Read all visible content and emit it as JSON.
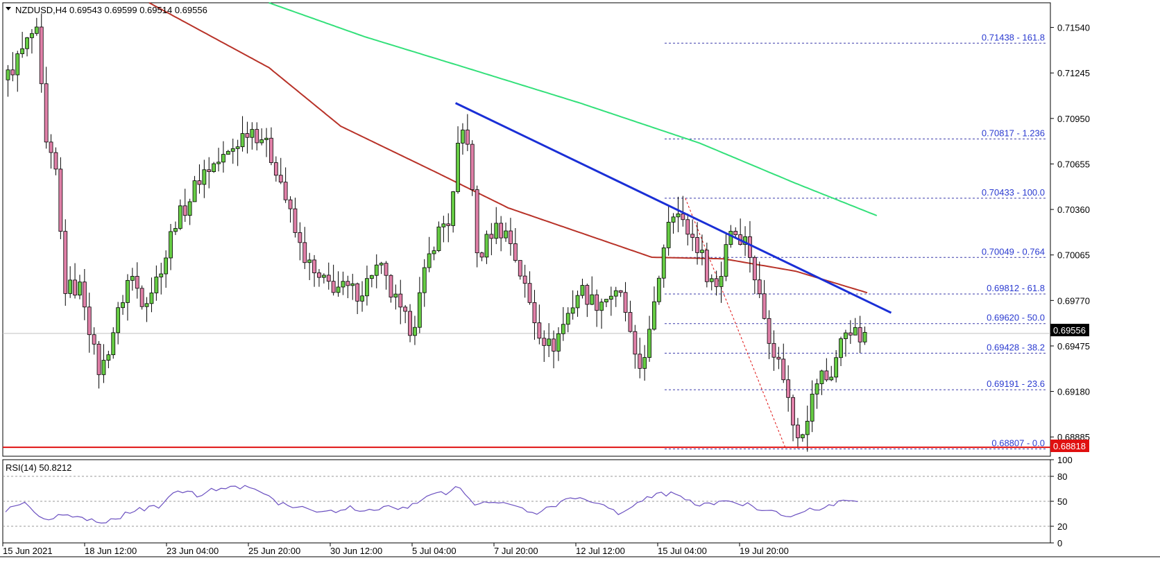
{
  "window": {
    "symbol_header": "NZDUSD,H4  0.69543 0.69599 0.69514 0.69556",
    "current_price": "0.69556",
    "support_price": "0.68818",
    "rsi_label": "RSI(14) 50.8212"
  },
  "colors": {
    "background": "#ffffff",
    "bull_candle": "#66cc44",
    "bear_candle": "#e080a8",
    "candle_wick": "#000000",
    "ma_red": "#b83228",
    "ma_green": "#33e07a",
    "trendline": "#1a2fd6",
    "support_line": "#e01010",
    "fib_text": "#2a3ad0",
    "fib_line": "#3a3aaa",
    "rsi_line": "#6a4fc0",
    "current_price_box": "#000000",
    "support_box": "#e01010"
  },
  "price_axis": {
    "ticks": [
      "0.71540",
      "0.71245",
      "0.70950",
      "0.70655",
      "0.70360",
      "0.70065",
      "0.69770",
      "0.69475",
      "0.69180",
      "0.68885"
    ]
  },
  "rsi_axis": {
    "ticks": [
      "100",
      "80",
      "50",
      "20",
      "0"
    ]
  },
  "time_axis": {
    "labels": [
      "15 Jun 2021",
      "18 Jun 12:00",
      "23 Jun 04:00",
      "25 Jun 20:00",
      "30 Jun 12:00",
      "5 Jul 04:00",
      "7 Jul 20:00",
      "12 Jul 12:00",
      "15 Jul 04:00",
      "19 Jul 20:00"
    ]
  },
  "fib_levels": [
    {
      "label": "0.71438 - 161.8",
      "price": 0.71438
    },
    {
      "label": "0.70817 - 1.236",
      "price": 0.70817
    },
    {
      "label": "0.70433 - 100.0",
      "price": 0.70433
    },
    {
      "label": "0.70049 - 0.764",
      "price": 0.70049
    },
    {
      "label": "0.69812 - 61.8",
      "price": 0.69812
    },
    {
      "label": "0.69620 - 50.0",
      "price": 0.6962
    },
    {
      "label": "0.69428 - 38.2",
      "price": 0.69428
    },
    {
      "label": "0.69191 - 23.6",
      "price": 0.69191
    },
    {
      "label": "0.68807 - 0.0",
      "price": 0.68807
    }
  ],
  "chart_data": {
    "type": "candlestick",
    "symbol": "NZDUSD",
    "timeframe": "H4",
    "ylim": [
      0.6876,
      0.717
    ],
    "current_price": 0.69556,
    "support_level": 0.68818,
    "bar_count": 200,
    "trendline": {
      "start": [
        94,
        0.7105
      ],
      "end": [
        185,
        0.6969
      ]
    },
    "moving_averages": [
      {
        "color": "ma_red",
        "points": [
          [
            30,
            0.717
          ],
          [
            55,
            0.7128
          ],
          [
            70,
            0.709
          ],
          [
            90,
            0.706
          ],
          [
            105,
            0.7037
          ],
          [
            120,
            0.7021
          ],
          [
            135,
            0.7005
          ],
          [
            150,
            0.7004
          ],
          [
            165,
            0.6996
          ],
          [
            180,
            0.6982
          ]
        ]
      },
      {
        "color": "ma_green",
        "points": [
          [
            55,
            0.717
          ],
          [
            75,
            0.7148
          ],
          [
            95,
            0.7129
          ],
          [
            120,
            0.7105
          ],
          [
            145,
            0.7079
          ],
          [
            165,
            0.7053
          ],
          [
            182,
            0.7032
          ]
        ]
      }
    ],
    "price_points": [
      [
        0,
        0.712
      ],
      [
        6,
        0.7152
      ],
      [
        7,
        0.7145
      ],
      [
        8,
        0.708
      ],
      [
        11,
        0.7055
      ],
      [
        12,
        0.6985
      ],
      [
        16,
        0.6985
      ],
      [
        19,
        0.6935
      ],
      [
        20,
        0.693
      ],
      [
        22,
        0.6952
      ],
      [
        26,
        0.6995
      ],
      [
        29,
        0.6975
      ],
      [
        33,
        0.7
      ],
      [
        35,
        0.7025
      ],
      [
        38,
        0.704
      ],
      [
        41,
        0.706
      ],
      [
        46,
        0.707
      ],
      [
        51,
        0.709
      ],
      [
        54,
        0.708
      ],
      [
        57,
        0.706
      ],
      [
        61,
        0.7015
      ],
      [
        65,
        0.699
      ],
      [
        70,
        0.6985
      ],
      [
        74,
        0.6982
      ],
      [
        78,
        0.7
      ],
      [
        82,
        0.697
      ],
      [
        85,
        0.6958
      ],
      [
        88,
        0.7
      ],
      [
        90,
        0.702
      ],
      [
        93,
        0.703
      ],
      [
        95,
        0.7088
      ],
      [
        97,
        0.708
      ],
      [
        98,
        0.701
      ],
      [
        99,
        0.7005
      ],
      [
        102,
        0.7025
      ],
      [
        105,
        0.702
      ],
      [
        108,
        0.699
      ],
      [
        111,
        0.696
      ],
      [
        114,
        0.6945
      ],
      [
        117,
        0.6965
      ],
      [
        120,
        0.6985
      ],
      [
        123,
        0.6975
      ],
      [
        126,
        0.698
      ],
      [
        129,
        0.6978
      ],
      [
        132,
        0.6928
      ],
      [
        135,
        0.696
      ],
      [
        137,
        0.7005
      ],
      [
        139,
        0.704
      ],
      [
        141,
        0.7028
      ],
      [
        143,
        0.702
      ],
      [
        145,
        0.701
      ],
      [
        147,
        0.699
      ],
      [
        149,
        0.6985
      ],
      [
        151,
        0.7025
      ],
      [
        153,
        0.702
      ],
      [
        155,
        0.7015
      ],
      [
        157,
        0.6985
      ],
      [
        159,
        0.696
      ],
      [
        161,
        0.694
      ],
      [
        163,
        0.6925
      ],
      [
        164,
        0.69
      ],
      [
        166,
        0.689
      ],
      [
        168,
        0.6908
      ],
      [
        170,
        0.693
      ],
      [
        172,
        0.6925
      ],
      [
        174,
        0.6945
      ],
      [
        176,
        0.6962
      ],
      [
        178,
        0.6952
      ]
    ],
    "rsi": {
      "label": "RSI(14)",
      "value": 50.8212,
      "ylim": [
        0,
        100
      ],
      "levels": [
        20,
        50,
        80
      ],
      "points": [
        [
          0,
          40
        ],
        [
          4,
          48
        ],
        [
          8,
          26
        ],
        [
          12,
          35
        ],
        [
          16,
          28
        ],
        [
          20,
          24
        ],
        [
          24,
          32
        ],
        [
          28,
          40
        ],
        [
          32,
          43
        ],
        [
          36,
          62
        ],
        [
          40,
          58
        ],
        [
          44,
          65
        ],
        [
          48,
          68
        ],
        [
          52,
          65
        ],
        [
          56,
          50
        ],
        [
          60,
          42
        ],
        [
          64,
          40
        ],
        [
          68,
          38
        ],
        [
          72,
          42
        ],
        [
          76,
          38
        ],
        [
          80,
          45
        ],
        [
          84,
          40
        ],
        [
          88,
          58
        ],
        [
          92,
          60
        ],
        [
          95,
          68
        ],
        [
          98,
          45
        ],
        [
          102,
          50
        ],
        [
          106,
          48
        ],
        [
          110,
          35
        ],
        [
          114,
          42
        ],
        [
          118,
          55
        ],
        [
          122,
          48
        ],
        [
          126,
          44
        ],
        [
          128,
          32
        ],
        [
          132,
          46
        ],
        [
          136,
          60
        ],
        [
          140,
          58
        ],
        [
          144,
          46
        ],
        [
          148,
          48
        ],
        [
          152,
          50
        ],
        [
          156,
          44
        ],
        [
          160,
          38
        ],
        [
          164,
          33
        ],
        [
          168,
          40
        ],
        [
          172,
          44
        ],
        [
          175,
          52
        ],
        [
          178,
          51
        ]
      ]
    }
  }
}
